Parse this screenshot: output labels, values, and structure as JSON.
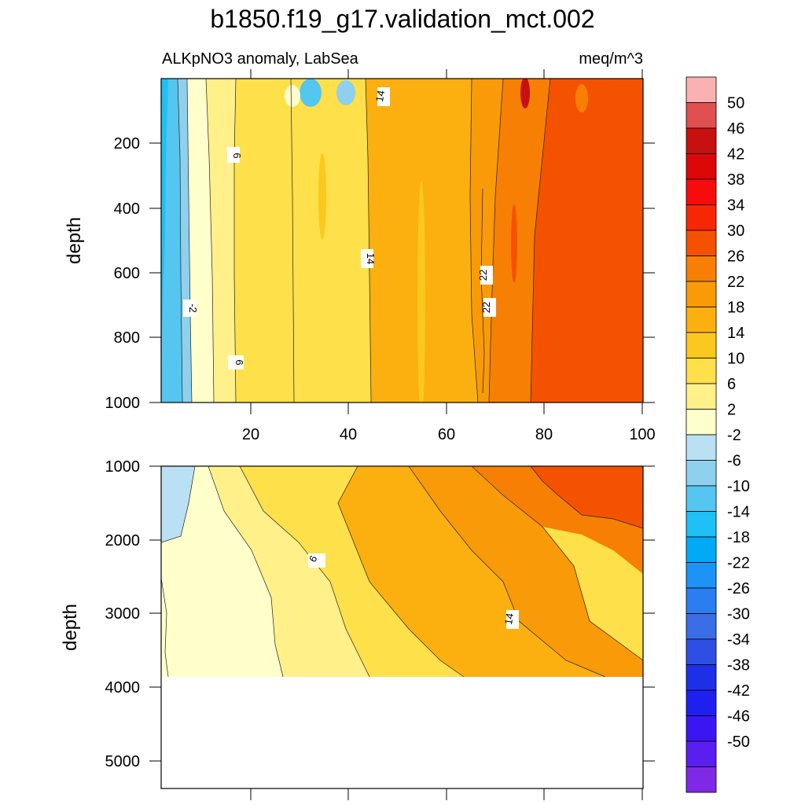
{
  "chart_data": {
    "type": "heatmap",
    "title": "b1850.f19_g17.validation_mct.002",
    "left_subtitle": "ALKpNO3 anomaly, LabSea",
    "right_subtitle": "meq/m^3",
    "colorbar": {
      "levels": [
        "-50",
        "-46",
        "-42",
        "-38",
        "-34",
        "-30",
        "-26",
        "-22",
        "-18",
        "-14",
        "-10",
        "-6",
        "-2",
        "2",
        "6",
        "10",
        "14",
        "18",
        "22",
        "26",
        "30",
        "34",
        "38",
        "42",
        "46",
        "50"
      ],
      "colors": [
        "#7f28e6",
        "#5a1ff0",
        "#3b16f2",
        "#1f20f0",
        "#1e2fe8",
        "#2e4ee4",
        "#3a6ee6",
        "#2a7ef0",
        "#1e93f5",
        "#00aaf5",
        "#1ec0f5",
        "#55c6ef",
        "#8ed0ee",
        "#b9e1f3",
        "#ffffcc",
        "#fff08a",
        "#fde04a",
        "#fcc81e",
        "#fbb010",
        "#f99a08",
        "#f77f04",
        "#f55200",
        "#f92606",
        "#f60c0c",
        "#dc0808",
        "#c81010",
        "#e15050",
        "#f9b1b1"
      ]
    },
    "panels": [
      {
        "id": "upper",
        "xlim": [
          0,
          102
        ],
        "ylim": [
          0,
          1000
        ],
        "ylabel": "depth",
        "yticks": [
          "200",
          "400",
          "600",
          "800",
          "1000"
        ],
        "xticks": [
          "20",
          "40",
          "60",
          "80",
          "100"
        ],
        "contour_labels": [
          "14",
          "6",
          "-2",
          "6",
          "14",
          "22",
          "22"
        ]
      },
      {
        "id": "lower",
        "xlim": [
          0,
          102
        ],
        "ylim": [
          1000,
          5500
        ],
        "ylabel": "depth",
        "yticks": [
          "1000",
          "2000",
          "3000",
          "4000",
          "5000"
        ],
        "contour_labels": [
          "6",
          "14"
        ]
      }
    ]
  }
}
